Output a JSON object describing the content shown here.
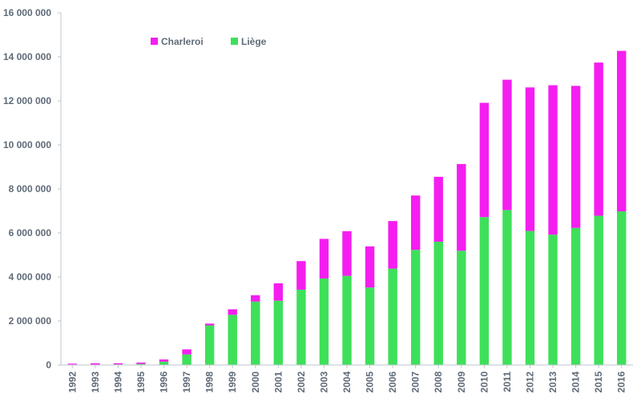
{
  "chart_data": {
    "type": "bar",
    "stacked": true,
    "title": "",
    "xlabel": "",
    "ylabel": "",
    "ylim": [
      0,
      16000000
    ],
    "yticks": [
      0,
      2000000,
      4000000,
      6000000,
      8000000,
      10000000,
      12000000,
      14000000,
      16000000
    ],
    "ytick_labels": [
      "0",
      "2 000 000",
      "4 000 000",
      "6 000 000",
      "8 000 000",
      "10 000 000",
      "12 000 000",
      "14 000 000",
      "16 000 000"
    ],
    "grid": false,
    "legend_position": "top-left",
    "categories": [
      "1992",
      "1993",
      "1994",
      "1995",
      "1996",
      "1997",
      "1998",
      "1999",
      "2000",
      "2001",
      "2002",
      "2003",
      "2004",
      "2005",
      "2006",
      "2007",
      "2008",
      "2009",
      "2010",
      "2011",
      "2012",
      "2013",
      "2014",
      "2015",
      "2016"
    ],
    "series": [
      {
        "name": "Liège",
        "color": "#3ee05a",
        "values": [
          20000,
          20000,
          30000,
          50000,
          150000,
          480000,
          1800000,
          2280000,
          2880000,
          2920000,
          3420000,
          3930000,
          4050000,
          3520000,
          4380000,
          5230000,
          5600000,
          5190000,
          6720000,
          7040000,
          6090000,
          5920000,
          6230000,
          6780000,
          6980000
        ]
      },
      {
        "name": "Charleroi",
        "color": "#f51ef0",
        "values": [
          40000,
          60000,
          50000,
          60000,
          100000,
          230000,
          80000,
          250000,
          290000,
          790000,
          1300000,
          1800000,
          2030000,
          1870000,
          2160000,
          2470000,
          2950000,
          3940000,
          5190000,
          5920000,
          6520000,
          6790000,
          6450000,
          6960000,
          7290000
        ]
      }
    ]
  }
}
